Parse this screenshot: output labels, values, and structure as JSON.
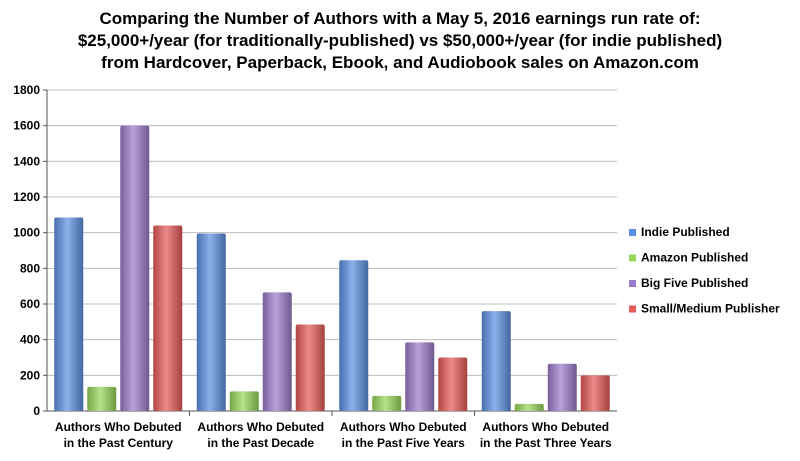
{
  "chart_data": {
    "type": "bar",
    "title_lines": [
      "Comparing the Number of Authors with a May 5, 2016 earnings run rate of:",
      "$25,000+/year (for traditionally-published) vs $50,000+/year (for indie published)",
      "from Hardcover, Paperback, Ebook, and Audiobook sales on Amazon.com"
    ],
    "categories": [
      [
        "Authors Who Debuted",
        "in the Past Century"
      ],
      [
        "Authors Who Debuted",
        "in the Past Decade"
      ],
      [
        "Authors Who Debuted",
        "in the Past Five Years"
      ],
      [
        "Authors Who Debuted",
        "in the Past Three Years"
      ]
    ],
    "series": [
      {
        "name": "Indie Published",
        "color": "#5b8ee0",
        "values": [
          1085,
          995,
          845,
          560
        ]
      },
      {
        "name": "Amazon Published",
        "color": "#96d65a",
        "values": [
          135,
          110,
          85,
          40
        ]
      },
      {
        "name": "Big Five Published",
        "color": "#9a7ac8",
        "values": [
          1600,
          665,
          385,
          265
        ]
      },
      {
        "name": "Small/Medium Publisher",
        "color": "#e45a58",
        "values": [
          1040,
          485,
          300,
          200
        ]
      }
    ],
    "ylim": [
      0,
      1800
    ],
    "yticks": [
      0,
      200,
      400,
      600,
      800,
      1000,
      1200,
      1400,
      1600,
      1800
    ],
    "grid": true,
    "legend_position": "right"
  }
}
